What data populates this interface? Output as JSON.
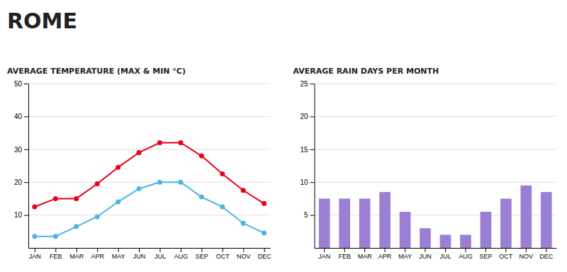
{
  "title": "ROME",
  "chart_data": [
    {
      "type": "line",
      "title": "AVERAGE TEMPERATURE (MAX & MIN °C)",
      "categories": [
        "JAN",
        "FEB",
        "MAR",
        "APR",
        "MAY",
        "JUN",
        "JUL",
        "AUG",
        "SEP",
        "OCT",
        "NOV",
        "DEC"
      ],
      "series": [
        {
          "color": "#e8001c",
          "marker": "circle",
          "values": [
            12.5,
            15,
            15,
            19.5,
            24.5,
            29,
            32,
            32,
            28,
            22.5,
            17.5,
            13.5
          ]
        },
        {
          "color": "#4db3e6",
          "marker": "circle",
          "values": [
            3.5,
            3.5,
            6.5,
            9.5,
            14,
            18,
            20,
            20,
            15.5,
            12.5,
            7.5,
            4.5
          ]
        }
      ],
      "ylim": [
        0,
        50
      ],
      "yticks": [
        10,
        20,
        30,
        40,
        50
      ],
      "grid": true
    },
    {
      "type": "bar",
      "title": "AVERAGE RAIN DAYS PER MONTH",
      "categories": [
        "JAN",
        "FEB",
        "MAR",
        "APR",
        "MAY",
        "JUN",
        "JUL",
        "AUG",
        "SEP",
        "OCT",
        "NOV",
        "DEC"
      ],
      "values": [
        7.5,
        7.5,
        7.5,
        8.5,
        5.5,
        3,
        2,
        2,
        5.5,
        7.5,
        9.5,
        8.5
      ],
      "color": "#9b7fd4",
      "ylim": [
        0,
        25
      ],
      "yticks": [
        5,
        10,
        15,
        20,
        25
      ],
      "grid": true
    }
  ]
}
